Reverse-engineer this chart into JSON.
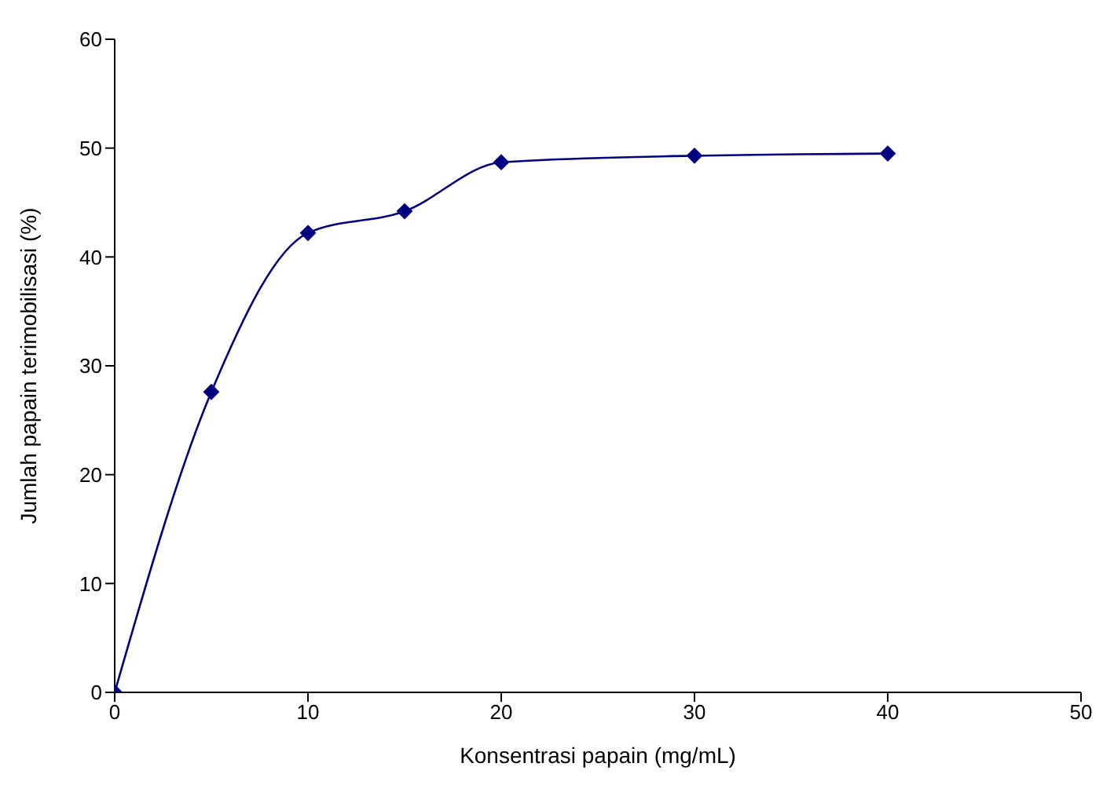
{
  "chart_data": {
    "type": "line",
    "xlabel": "Konsentrasi papain (mg/mL)",
    "ylabel": "Jumlah papain terimobilisasi (%)",
    "x": [
      0,
      5,
      10,
      15,
      20,
      30,
      40
    ],
    "series": [
      {
        "color": "#000080",
        "values": [
          0,
          27.6,
          42.2,
          44.2,
          48.7,
          49.3,
          49.5
        ]
      }
    ],
    "xlim": [
      0,
      50
    ],
    "xticks": [
      0,
      10,
      20,
      30,
      40,
      50
    ],
    "ylim": [
      0,
      60
    ],
    "yticks": [
      0,
      10,
      20,
      30,
      40,
      50,
      60
    ],
    "grid": false,
    "legend": false,
    "marker": "diamond",
    "line_style": "solid"
  }
}
